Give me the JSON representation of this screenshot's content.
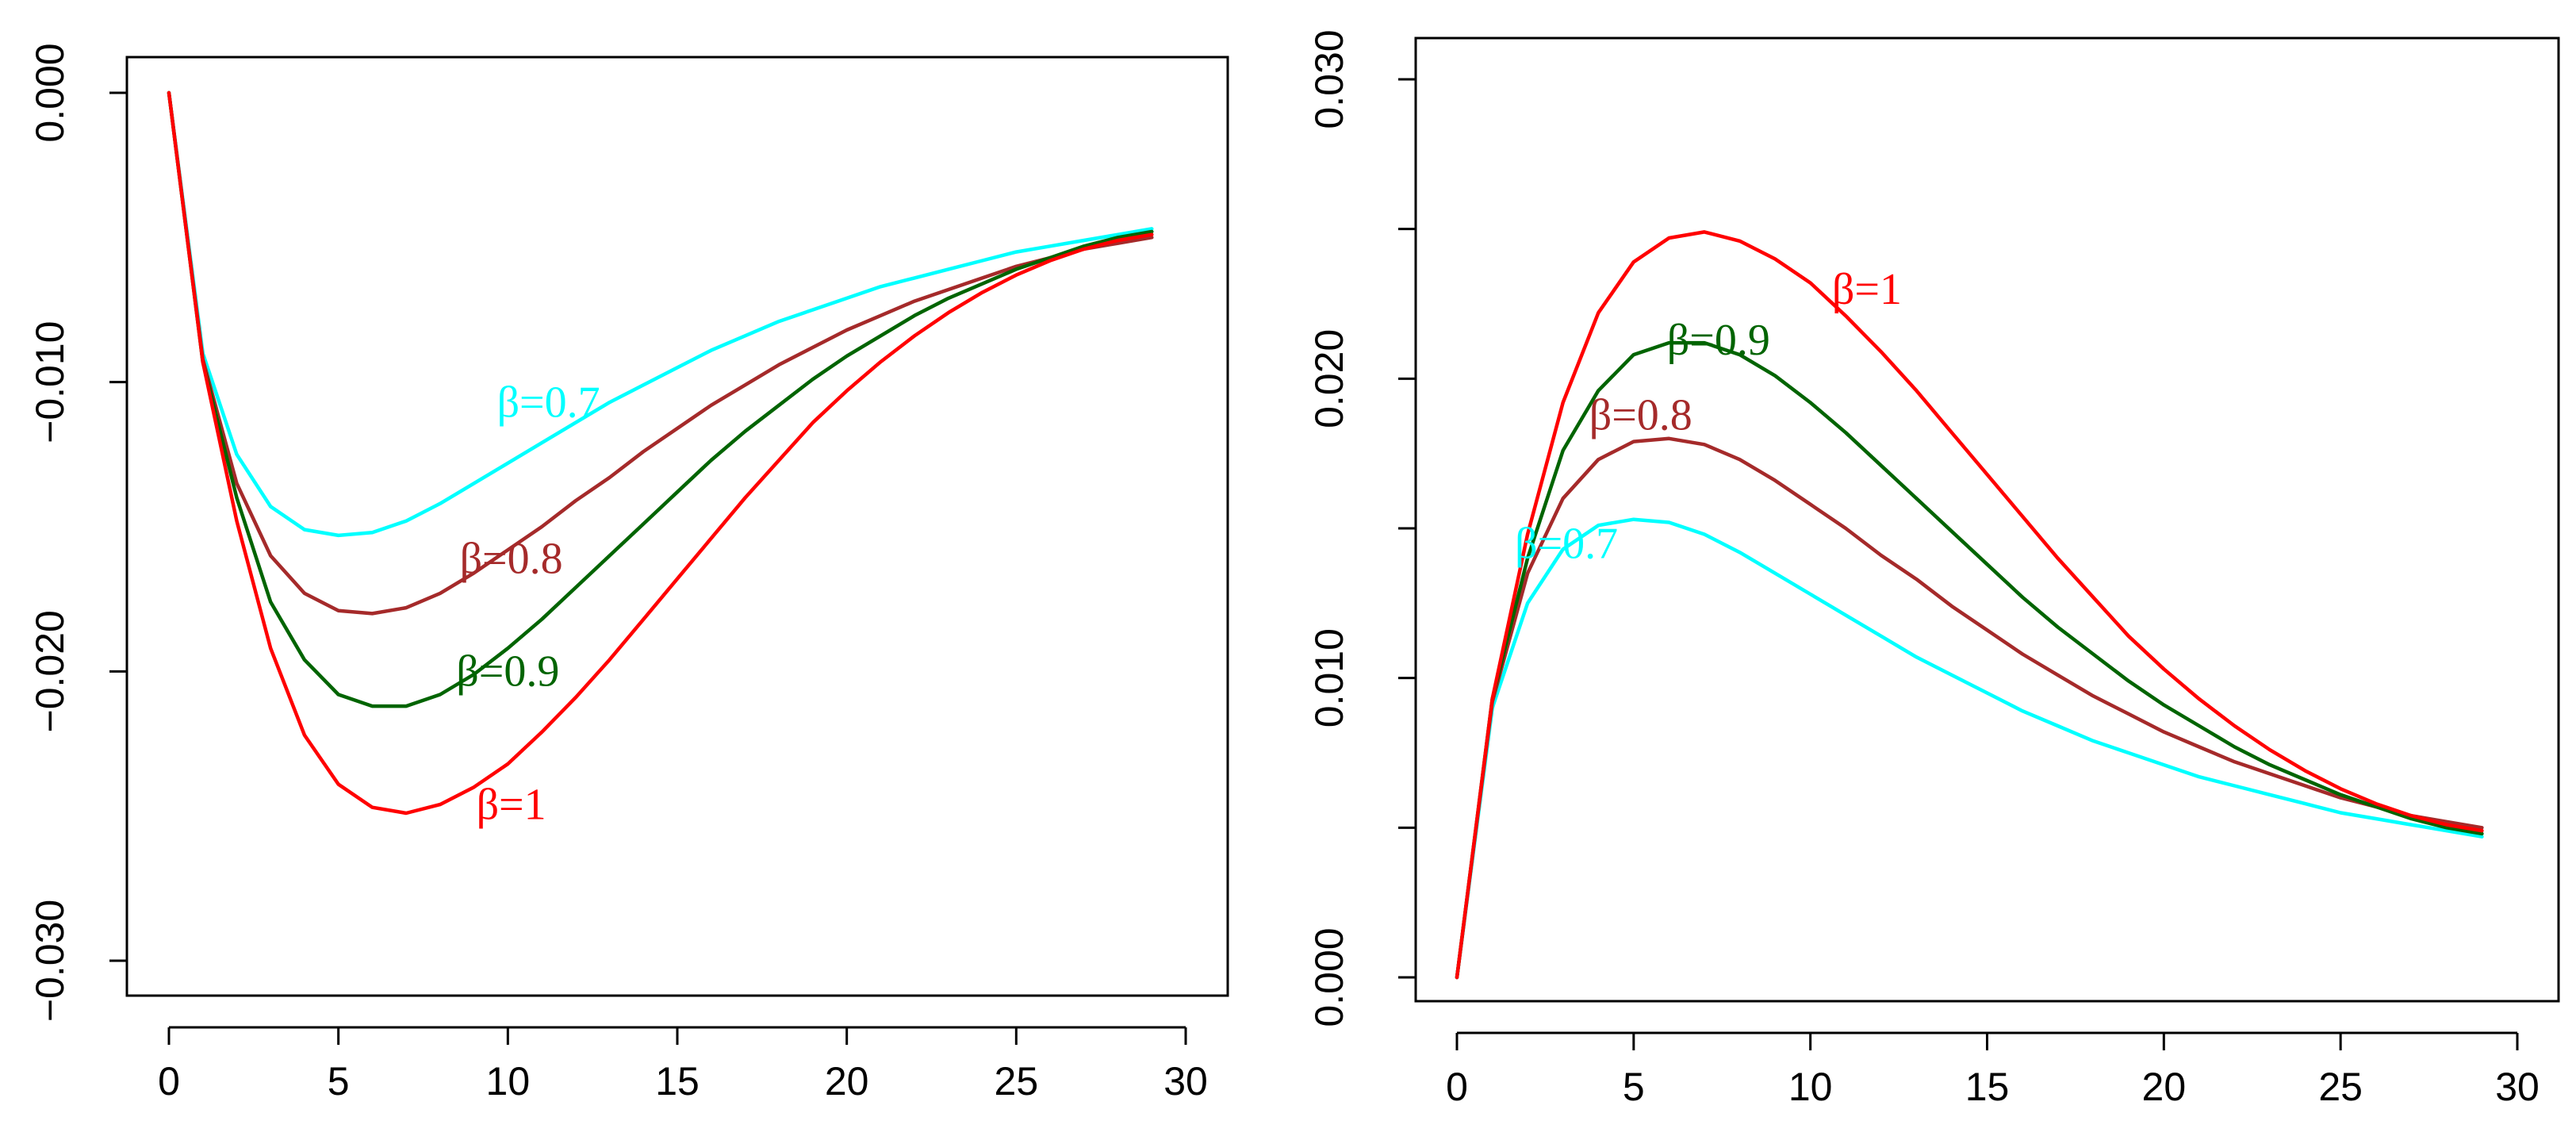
{
  "colors": {
    "beta_0_7": "#00FFFF",
    "beta_0_8": "#A52A2A",
    "beta_0_9": "#006400",
    "beta_1": "#FF0000"
  },
  "chart_data": [
    {
      "type": "line",
      "title": "",
      "xlabel": "",
      "ylabel": "",
      "xlim": [
        0,
        30
      ],
      "ylim": [
        -0.031,
        0.0015
      ],
      "x_ticks": [
        0,
        5,
        10,
        15,
        20,
        25,
        30
      ],
      "x_tick_labels": [
        "0",
        "5",
        "10",
        "15",
        "20",
        "25",
        "30"
      ],
      "y_ticks": [
        0.0,
        -0.01,
        -0.02,
        -0.03
      ],
      "y_tick_labels": [
        "0.000",
        "−0.010",
        "−0.020",
        "−0.030"
      ],
      "x": [
        0,
        1,
        2,
        3,
        4,
        5,
        6,
        7,
        8,
        9,
        10,
        11,
        12,
        13,
        14,
        15,
        16,
        17,
        18,
        19,
        20,
        21,
        22,
        23,
        24,
        25,
        26,
        27,
        28,
        29
      ],
      "series": [
        {
          "name": "β=0.7",
          "color_key": "beta_0_7",
          "values": [
            0.0,
            -0.009,
            -0.0125,
            -0.0143,
            -0.0151,
            -0.0153,
            -0.0152,
            -0.0148,
            -0.0142,
            -0.0135,
            -0.0128,
            -0.0121,
            -0.0114,
            -0.0107,
            -0.0101,
            -0.0095,
            -0.0089,
            -0.0084,
            -0.0079,
            -0.0075,
            -0.0071,
            -0.0067,
            -0.0064,
            -0.0061,
            -0.0058,
            -0.0055,
            -0.0053,
            -0.0051,
            -0.0049,
            -0.0047
          ],
          "label_pos": [
            11.2,
            -0.0112
          ]
        },
        {
          "name": "β=0.8",
          "color_key": "beta_0_8",
          "values": [
            0.0,
            -0.0092,
            -0.0135,
            -0.016,
            -0.0173,
            -0.0179,
            -0.018,
            -0.0178,
            -0.0173,
            -0.0166,
            -0.0158,
            -0.015,
            -0.0141,
            -0.0133,
            -0.0124,
            -0.0116,
            -0.0108,
            -0.0101,
            -0.0094,
            -0.0088,
            -0.0082,
            -0.0077,
            -0.0072,
            -0.0068,
            -0.0064,
            -0.006,
            -0.0057,
            -0.0054,
            -0.0052,
            -0.005
          ],
          "label_pos": [
            10.1,
            -0.0166
          ]
        },
        {
          "name": "β=0.9",
          "color_key": "beta_0_9",
          "values": [
            0.0,
            -0.0093,
            -0.014,
            -0.0176,
            -0.0196,
            -0.0208,
            -0.0212,
            -0.0212,
            -0.0208,
            -0.0201,
            -0.0192,
            -0.0182,
            -0.0171,
            -0.016,
            -0.0149,
            -0.0138,
            -0.0127,
            -0.0117,
            -0.0108,
            -0.0099,
            -0.0091,
            -0.0084,
            -0.0077,
            -0.0071,
            -0.0066,
            -0.0061,
            -0.0057,
            -0.0053,
            -0.005,
            -0.0048
          ],
          "label_pos": [
            10.0,
            -0.0205
          ]
        },
        {
          "name": "β=1",
          "color_key": "beta_1",
          "values": [
            0.0,
            -0.0093,
            -0.0148,
            -0.0192,
            -0.0222,
            -0.0239,
            -0.0247,
            -0.0249,
            -0.0246,
            -0.024,
            -0.0232,
            -0.0221,
            -0.0209,
            -0.0196,
            -0.0182,
            -0.0168,
            -0.0154,
            -0.014,
            -0.0127,
            -0.0114,
            -0.0103,
            -0.0093,
            -0.0084,
            -0.0076,
            -0.0069,
            -0.0063,
            -0.0058,
            -0.0054,
            -0.0051,
            -0.0049
          ],
          "label_pos": [
            10.1,
            -0.0251
          ]
        }
      ]
    },
    {
      "type": "line",
      "title": "",
      "xlabel": "",
      "ylabel": "",
      "xlim": [
        0,
        30
      ],
      "ylim": [
        -0.0015,
        0.031
      ],
      "x_ticks": [
        0,
        5,
        10,
        15,
        20,
        25,
        30
      ],
      "x_tick_labels": [
        "0",
        "5",
        "10",
        "15",
        "20",
        "25",
        "30"
      ],
      "y_ticks": [
        0.0,
        0.005,
        0.01,
        0.015,
        0.02,
        0.025,
        0.03
      ],
      "y_tick_labels": [
        "0.000",
        "",
        "0.010",
        "",
        "0.020",
        "",
        "0.030"
      ],
      "x": [
        0,
        1,
        2,
        3,
        4,
        5,
        6,
        7,
        8,
        9,
        10,
        11,
        12,
        13,
        14,
        15,
        16,
        17,
        18,
        19,
        20,
        21,
        22,
        23,
        24,
        25,
        26,
        27,
        28,
        29
      ],
      "series": [
        {
          "name": "β=0.7",
          "color_key": "beta_0_7",
          "values": [
            0.0,
            0.009,
            0.0125,
            0.0143,
            0.0151,
            0.0153,
            0.0152,
            0.0148,
            0.0142,
            0.0135,
            0.0128,
            0.0121,
            0.0114,
            0.0107,
            0.0101,
            0.0095,
            0.0089,
            0.0084,
            0.0079,
            0.0075,
            0.0071,
            0.0067,
            0.0064,
            0.0061,
            0.0058,
            0.0055,
            0.0053,
            0.0051,
            0.0049,
            0.0047
          ],
          "label_pos": [
            3.1,
            0.014
          ]
        },
        {
          "name": "β=0.8",
          "color_key": "beta_0_8",
          "values": [
            0.0,
            0.0092,
            0.0135,
            0.016,
            0.0173,
            0.0179,
            0.018,
            0.0178,
            0.0173,
            0.0166,
            0.0158,
            0.015,
            0.0141,
            0.0133,
            0.0124,
            0.0116,
            0.0108,
            0.0101,
            0.0094,
            0.0088,
            0.0082,
            0.0077,
            0.0072,
            0.0068,
            0.0064,
            0.006,
            0.0057,
            0.0054,
            0.0052,
            0.005
          ],
          "label_pos": [
            5.2,
            0.0183
          ]
        },
        {
          "name": "β=0.9",
          "color_key": "beta_0_9",
          "values": [
            0.0,
            0.0093,
            0.014,
            0.0176,
            0.0196,
            0.0208,
            0.0212,
            0.0212,
            0.0208,
            0.0201,
            0.0192,
            0.0182,
            0.0171,
            0.016,
            0.0149,
            0.0138,
            0.0127,
            0.0117,
            0.0108,
            0.0099,
            0.0091,
            0.0084,
            0.0077,
            0.0071,
            0.0066,
            0.0061,
            0.0057,
            0.0053,
            0.005,
            0.0048
          ],
          "label_pos": [
            7.4,
            0.0208
          ]
        },
        {
          "name": "β=1",
          "color_key": "beta_1",
          "values": [
            0.0,
            0.0093,
            0.0148,
            0.0192,
            0.0222,
            0.0239,
            0.0247,
            0.0249,
            0.0246,
            0.024,
            0.0232,
            0.0221,
            0.0209,
            0.0196,
            0.0182,
            0.0168,
            0.0154,
            0.014,
            0.0127,
            0.0114,
            0.0103,
            0.0093,
            0.0084,
            0.0076,
            0.0069,
            0.0063,
            0.0058,
            0.0054,
            0.0051,
            0.0049
          ],
          "label_pos": [
            11.6,
            0.0225
          ]
        }
      ]
    }
  ]
}
